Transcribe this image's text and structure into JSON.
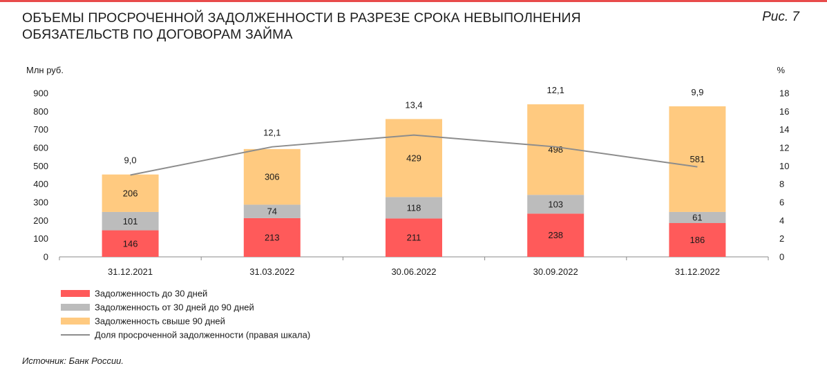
{
  "header": {
    "title": "Объемы просроченной задолженности в разрезе срока невыполнения обязательств по договорам займа",
    "figure_label": "Рис. 7"
  },
  "source": "Источник: Банк России.",
  "colors": {
    "up_to_30": "#ff5a5a",
    "from_30_to_90": "#bcbcbc",
    "over_90": "#ffca80",
    "share_line": "#8c8c8c",
    "axis": "#888888",
    "rule": "#e84b4b"
  },
  "chart_data": {
    "type": "bar",
    "stacked": true,
    "categories": [
      "31.12.2021",
      "31.03.2022",
      "30.06.2022",
      "30.09.2022",
      "31.12.2022"
    ],
    "ylabel": "Млн руб.",
    "y2label": "%",
    "ylim": [
      0,
      900
    ],
    "y_ticks": [
      0,
      100,
      200,
      300,
      400,
      500,
      600,
      700,
      800,
      900
    ],
    "y2lim": [
      0,
      18
    ],
    "y2_ticks": [
      0,
      2,
      4,
      6,
      8,
      10,
      12,
      14,
      16,
      18
    ],
    "grid": false,
    "series": [
      {
        "name": "Задолженность до 30 дней",
        "color_key": "up_to_30",
        "values": [
          146,
          213,
          211,
          238,
          186
        ]
      },
      {
        "name": "Задолженность от 30 дней до 90 дней",
        "color_key": "from_30_to_90",
        "values": [
          101,
          74,
          118,
          103,
          61
        ]
      },
      {
        "name": "Задолженность свыше 90 дней",
        "color_key": "over_90",
        "values": [
          206,
          306,
          429,
          498,
          581
        ]
      }
    ],
    "line_series": {
      "name": "Доля просроченной задолженности (правая шкала)",
      "axis": "right",
      "values": [
        9.0,
        12.1,
        13.4,
        12.1,
        9.9
      ],
      "labels": [
        "9,0",
        "12,1",
        "13,4",
        "12,1",
        "9,9"
      ]
    },
    "legend_position": "bottom-left"
  }
}
